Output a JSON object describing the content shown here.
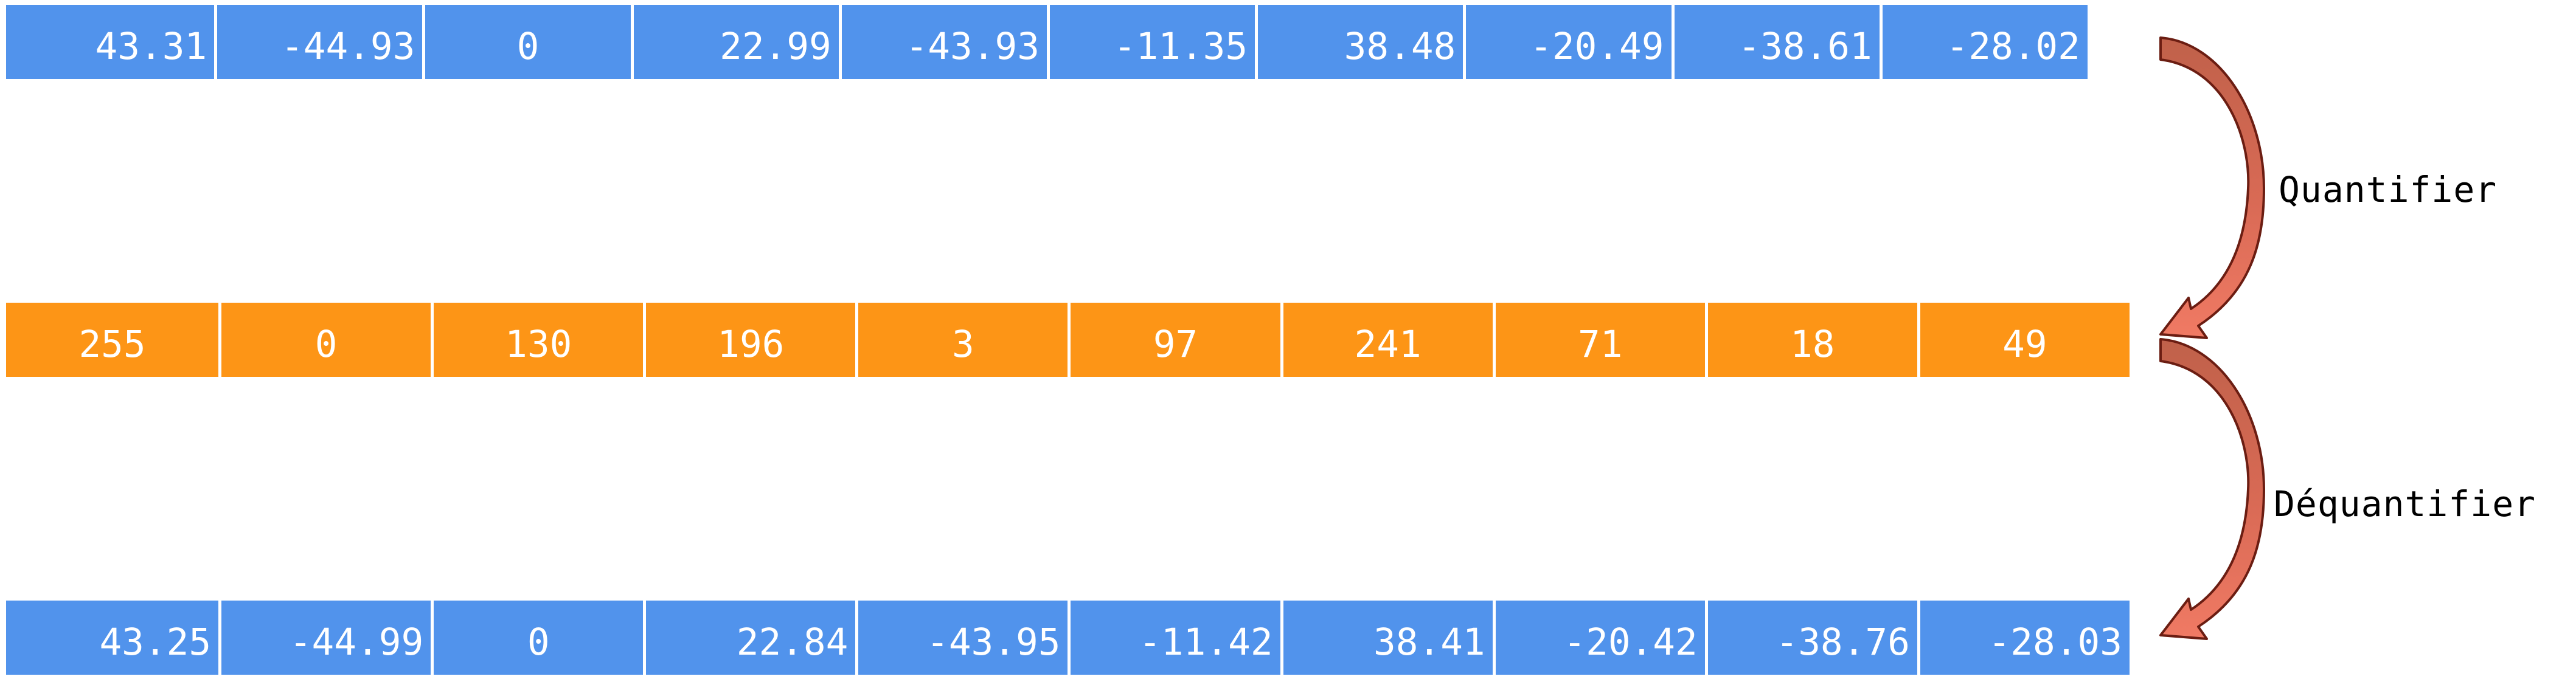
{
  "rows": {
    "input": [
      "43.31",
      "-44.93",
      "0",
      "22.99",
      "-43.93",
      "-11.35",
      "38.48",
      "-20.49",
      "-38.61",
      "-28.02"
    ],
    "quantized": [
      "255",
      "0",
      "130",
      "196",
      "3",
      "97",
      "241",
      "71",
      "18",
      "49"
    ],
    "output": [
      "43.25",
      "-44.99",
      "0",
      "22.84",
      "-43.95",
      "-11.42",
      "38.41",
      "-20.42",
      "-38.76",
      "-28.03"
    ]
  },
  "steps": {
    "quantize_label": "Quantifier",
    "dequantize_label": "Déquantifier"
  },
  "colors": {
    "float_cells": "#5193ec",
    "int_cells": "#fd9516",
    "arrow_fill": "#c0614a",
    "arrow_highlight": "#f07a64",
    "arrow_stroke": "#6b1d12"
  }
}
